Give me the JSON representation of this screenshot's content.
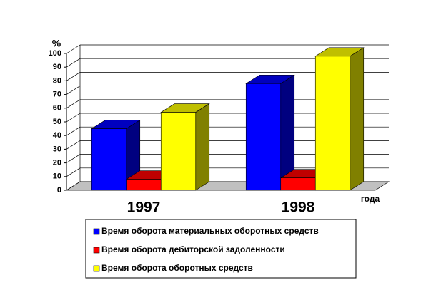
{
  "chart_data": {
    "type": "bar3d",
    "y_label": "%",
    "x_label": "года",
    "categories": [
      "1997",
      "1998"
    ],
    "series": [
      {
        "name": "Время оборота материальных оборотных средств",
        "color": "#0000ff",
        "values": [
          45,
          78
        ]
      },
      {
        "name": "Время оборота дебиторской задоленности",
        "color": "#ff0000",
        "values": [
          8,
          9
        ]
      },
      {
        "name": "Время оборота оборотных средств",
        "color": "#ffff00",
        "values": [
          57,
          98
        ]
      }
    ],
    "ylim": [
      0,
      100
    ],
    "yticks": [
      0,
      10,
      20,
      30,
      40,
      50,
      60,
      70,
      80,
      90,
      100
    ],
    "grid": true
  }
}
